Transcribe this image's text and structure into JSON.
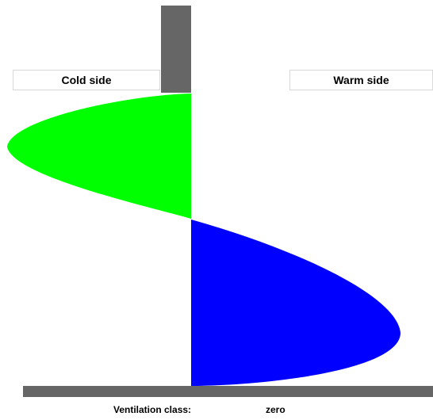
{
  "labels": {
    "cold_side": "Cold side",
    "warm_side": "Warm side"
  },
  "footer": {
    "ventilation_caption": "Ventilation class:",
    "ventilation_value": "zero"
  },
  "colors": {
    "background": "#ffffff",
    "post": "#666666",
    "cold_lobe": "#00ff00",
    "warm_lobe": "#0000ff",
    "label_border": "#d8d8d8"
  }
}
